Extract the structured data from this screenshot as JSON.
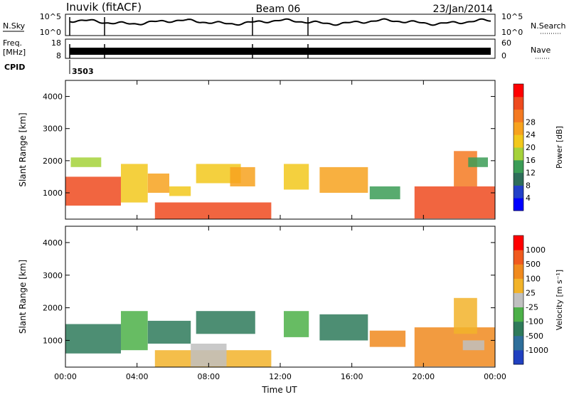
{
  "header": {
    "station": "Inuvik (fitACF)",
    "beam": "Beam 06",
    "date": "23/Jan/2014"
  },
  "noise_panel": {
    "left_label": "N.Sky",
    "right_label": "N.Search",
    "left_ticks": [
      "10^5",
      "10^0"
    ],
    "right_ticks": [
      "10^5",
      "10^0"
    ]
  },
  "freq_panel": {
    "left_label_1": "Freq.",
    "left_label_2": "[MHz]",
    "right_label": "Nave",
    "left_ticks": [
      "18",
      "8"
    ],
    "right_ticks": [
      "60",
      "0"
    ]
  },
  "cpid": {
    "label": "CPID",
    "value": "3503"
  },
  "chart_data": [
    {
      "type": "heatmap",
      "ylabel": "Slant Range [km]",
      "xlabel": "",
      "x_ticks": [
        "00:00",
        "04:00",
        "08:00",
        "12:00",
        "16:00",
        "20:00",
        "00:00"
      ],
      "y_ticks": [
        1000,
        2000,
        3000,
        4000
      ],
      "ylim": [
        180,
        4500
      ],
      "xlim_hours": [
        0,
        24
      ],
      "colorbar": {
        "label": "Power [dB]",
        "ticks": [
          "4",
          "8",
          "12",
          "16",
          "20",
          "24",
          "28"
        ],
        "colors": [
          "#0000ff",
          "#2240c8",
          "#2e6e5a",
          "#3b9c56",
          "#a5d23a",
          "#f2c81c",
          "#f7a21e",
          "#f47a22",
          "#ee4a1e",
          "#ff0000"
        ]
      },
      "regions": [
        {
          "t0": 0.0,
          "t1": 3.1,
          "r0": 600,
          "r1": 1500,
          "level": 8
        },
        {
          "t0": 3.1,
          "t1": 4.6,
          "r0": 700,
          "r1": 1900,
          "level": 5
        },
        {
          "t0": 4.6,
          "t1": 5.8,
          "r0": 1000,
          "r1": 1600,
          "level": 6
        },
        {
          "t0": 5.8,
          "t1": 7.0,
          "r0": 900,
          "r1": 1200,
          "level": 5
        },
        {
          "t0": 5.0,
          "t1": 11.5,
          "r0": 180,
          "r1": 700,
          "level": 8
        },
        {
          "t0": 7.3,
          "t1": 9.8,
          "r0": 1300,
          "r1": 1900,
          "level": 5
        },
        {
          "t0": 9.2,
          "t1": 10.6,
          "r0": 1200,
          "r1": 1800,
          "level": 6
        },
        {
          "t0": 12.2,
          "t1": 13.6,
          "r0": 1100,
          "r1": 1900,
          "level": 5
        },
        {
          "t0": 14.2,
          "t1": 16.9,
          "r0": 1000,
          "r1": 1800,
          "level": 6
        },
        {
          "t0": 17.0,
          "t1": 18.7,
          "r0": 800,
          "r1": 1200,
          "level": 3
        },
        {
          "t0": 19.5,
          "t1": 24.0,
          "r0": 200,
          "r1": 1200,
          "level": 8
        },
        {
          "t0": 21.7,
          "t1": 23.0,
          "r0": 1200,
          "r1": 2300,
          "level": 7
        },
        {
          "t0": 0.3,
          "t1": 2.0,
          "r0": 1800,
          "r1": 2100,
          "level": 4
        },
        {
          "t0": 22.5,
          "t1": 23.6,
          "r0": 1800,
          "r1": 2100,
          "level": 3
        }
      ]
    },
    {
      "type": "heatmap",
      "ylabel": "Slant Range [km]",
      "xlabel": "Time UT",
      "x_ticks": [
        "00:00",
        "04:00",
        "08:00",
        "12:00",
        "16:00",
        "20:00",
        "00:00"
      ],
      "y_ticks": [
        1000,
        2000,
        3000,
        4000
      ],
      "ylim": [
        180,
        4500
      ],
      "xlim_hours": [
        0,
        24
      ],
      "colorbar": {
        "label": "Velocity [m s⁻¹]",
        "ticks": [
          "1000",
          "500",
          "100",
          "25",
          "-25",
          "-100",
          "-500",
          "-1000"
        ],
        "colors": [
          "#2040c0",
          "#2e6e9a",
          "#2e7a5a",
          "#4cb048",
          "#c0c0c0",
          "#f2b32a",
          "#f08a1e",
          "#f05a1e",
          "#ff0000"
        ]
      },
      "regions": [
        {
          "t0": 0.0,
          "t1": 3.1,
          "r0": 600,
          "r1": 1500,
          "level": 2
        },
        {
          "t0": 3.1,
          "t1": 4.6,
          "r0": 700,
          "r1": 1900,
          "level": 3
        },
        {
          "t0": 4.6,
          "t1": 7.0,
          "r0": 900,
          "r1": 1600,
          "level": 2
        },
        {
          "t0": 5.0,
          "t1": 11.5,
          "r0": 180,
          "r1": 700,
          "level": 5
        },
        {
          "t0": 7.0,
          "t1": 9.0,
          "r0": 200,
          "r1": 900,
          "level": 4
        },
        {
          "t0": 7.3,
          "t1": 10.6,
          "r0": 1200,
          "r1": 1900,
          "level": 2
        },
        {
          "t0": 12.2,
          "t1": 13.6,
          "r0": 1100,
          "r1": 1900,
          "level": 3
        },
        {
          "t0": 14.2,
          "t1": 16.9,
          "r0": 1000,
          "r1": 1800,
          "level": 2
        },
        {
          "t0": 17.0,
          "t1": 19.0,
          "r0": 800,
          "r1": 1300,
          "level": 6
        },
        {
          "t0": 19.5,
          "t1": 24.0,
          "r0": 200,
          "r1": 1400,
          "level": 6
        },
        {
          "t0": 21.7,
          "t1": 23.0,
          "r0": 1200,
          "r1": 2300,
          "level": 5
        },
        {
          "t0": 22.2,
          "t1": 23.4,
          "r0": 700,
          "r1": 1000,
          "level": 4
        }
      ]
    }
  ]
}
